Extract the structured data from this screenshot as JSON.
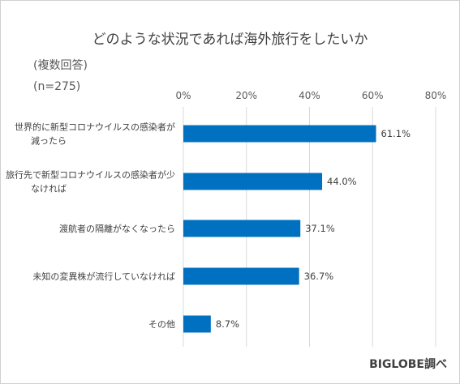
{
  "title": "どのような状況であれば海外旅行をしたいか",
  "notes": [
    "(複数回答)",
    "(n=275)"
  ],
  "source": "BIGLOBE調べ",
  "chart_data": {
    "type": "bar",
    "orientation": "horizontal",
    "categories": [
      [
        "世界的に新型コロナウイルスの感染者が",
        "減ったら"
      ],
      [
        "旅行先で新型コロナウイルスの感染者が少",
        "なければ"
      ],
      [
        "渡航者の隔離がなくなったら"
      ],
      [
        "未知の変異株が流行していなければ"
      ],
      [
        "その他"
      ]
    ],
    "values": [
      61.1,
      44.0,
      37.1,
      36.7,
      8.7
    ],
    "value_labels": [
      "61.1%",
      "44.0%",
      "37.1%",
      "36.7%",
      "8.7%"
    ],
    "xlim": [
      0,
      80
    ],
    "xticks": [
      "0%",
      "20%",
      "40%",
      "60%",
      "80%"
    ],
    "xtick_values": [
      0,
      20,
      40,
      60,
      80
    ],
    "grid": true,
    "axis_position": "top",
    "bar_color": "#0070c0",
    "grid_color": "#d9d9d9"
  }
}
